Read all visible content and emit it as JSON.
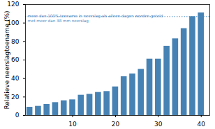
{
  "chart_data": {
    "type": "bar",
    "y_label": "Relatieve neerslagtoename (%)",
    "x": [
      0,
      2,
      4,
      6,
      8,
      10,
      12,
      14,
      16,
      18,
      20,
      22,
      24,
      26,
      28,
      30,
      32,
      34,
      36,
      38,
      40
    ],
    "values": [
      9,
      10,
      12,
      14,
      16,
      17,
      22,
      23,
      25,
      26,
      31,
      42,
      45,
      50,
      61,
      61,
      75,
      83,
      94,
      107,
      111
    ],
    "color": "#4682b4",
    "xlim": [
      -1,
      42
    ],
    "xticks": [
      10,
      20,
      30,
      40
    ],
    "ylim": [
      0,
      120
    ],
    "yticks": [
      0,
      20,
      40,
      60,
      80,
      100,
      120
    ],
    "grid": false,
    "annotations": [
      {
        "lines": [
          "meer dan 100% toename in neerslag als alleen dagen worden geteld",
          "met meer dan 38 mm neerslag"
        ],
        "y": 107,
        "color": "#4a8ac4",
        "line_style": "dotted"
      }
    ]
  }
}
